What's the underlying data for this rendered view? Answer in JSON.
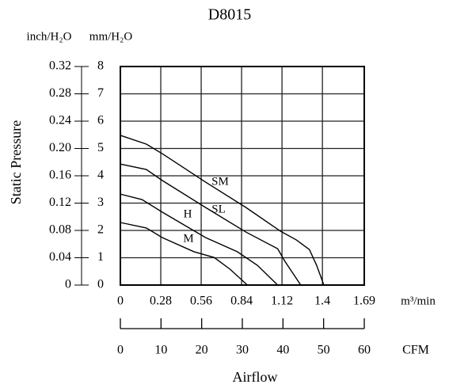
{
  "chart_data": {
    "type": "line",
    "title": "D8015",
    "y_label": "Static Pressure",
    "x_label": "Airflow",
    "y_unit": "mm/H₂O",
    "y2_unit": "inch/H₂O",
    "x_unit": "m³/min",
    "x2_unit": "CFM",
    "xlim": [
      0,
      1.69
    ],
    "xticks": [
      0,
      0.28,
      0.56,
      0.84,
      1.12,
      1.4,
      1.69
    ],
    "x2lim": [
      0,
      60
    ],
    "x2ticks": [
      0,
      10,
      20,
      30,
      40,
      50,
      60
    ],
    "ylim": [
      0,
      8
    ],
    "yticks": [
      0,
      1,
      2,
      3,
      4,
      5,
      6,
      7,
      8
    ],
    "y2lim": [
      0,
      0.32
    ],
    "y2ticks": [
      0,
      0.04,
      0.08,
      0.12,
      0.16,
      {
        "value": 0.2,
        "label": "0.20"
      },
      0.24,
      0.28,
      0.32
    ],
    "grid": true,
    "series": [
      {
        "name": "SM",
        "color": "#000000",
        "x": [
          0,
          0.18,
          0.29,
          0.59,
          0.87,
          1.11,
          1.22,
          1.31,
          1.36,
          1.41
        ],
        "values": [
          5.48,
          5.16,
          4.81,
          3.77,
          2.84,
          1.97,
          1.65,
          1.3,
          0.72,
          0
        ]
      },
      {
        "name": "SL",
        "color": "#000000",
        "x": [
          0,
          0.18,
          0.29,
          0.59,
          0.87,
          1.09,
          1.14,
          1.25
        ],
        "values": [
          4.43,
          4.23,
          3.83,
          2.84,
          1.94,
          1.33,
          0.87,
          0
        ]
      },
      {
        "name": "H",
        "color": "#000000",
        "x": [
          0,
          0.15,
          0.29,
          0.59,
          0.81,
          0.95,
          1.09
        ],
        "values": [
          3.33,
          3.13,
          2.67,
          1.74,
          1.22,
          0.72,
          0
        ]
      },
      {
        "name": "M",
        "color": "#000000",
        "x": [
          0,
          0.18,
          0.29,
          0.51,
          0.65,
          0.76,
          0.88
        ],
        "values": [
          2.29,
          2.09,
          1.74,
          1.22,
          1.01,
          0.58,
          0
        ]
      }
    ]
  }
}
